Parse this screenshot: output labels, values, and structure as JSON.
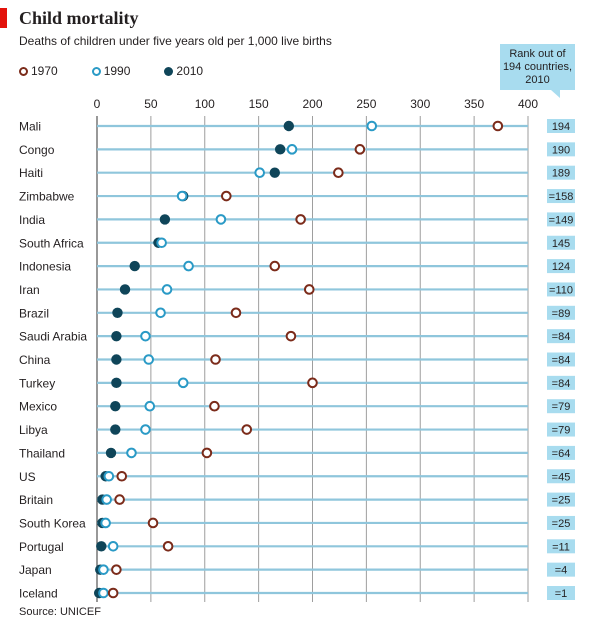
{
  "title": "Child mortality",
  "subtitle": "Deaths of children under five years old per 1,000 live births",
  "source": "Source: UNICEF",
  "rank_header": "Rank out of 194 countries, 2010",
  "colors": {
    "y1970": "#7b2b1a",
    "y1990": "#2a9ac6",
    "y2010": "#0f4559",
    "rank_bg": "#a8dcef",
    "grid": "#9e9e9e",
    "row_line": "#8fc6dc",
    "accent": "#e3120b"
  },
  "chart_data": {
    "type": "scatter",
    "title": "Child mortality",
    "subtitle": "Deaths of children under five years old per 1,000 live births",
    "xlim": [
      0,
      400
    ],
    "x_ticks": [
      0,
      50,
      100,
      150,
      200,
      250,
      300,
      350,
      400
    ],
    "legend": [
      "1970",
      "1990",
      "2010"
    ],
    "legend_position": "top-left",
    "grid": true,
    "rows": [
      {
        "country": "Mali",
        "y1970": 372,
        "y1990": 255,
        "y2010": 178,
        "rank": "194"
      },
      {
        "country": "Congo",
        "y1970": 244,
        "y1990": 181,
        "y2010": 170,
        "rank": "190"
      },
      {
        "country": "Haiti",
        "y1970": 224,
        "y1990": 151,
        "y2010": 165,
        "rank": "189"
      },
      {
        "country": "Zimbabwe",
        "y1970": 120,
        "y1990": 79,
        "y2010": 80,
        "rank": "=158"
      },
      {
        "country": "India",
        "y1970": 189,
        "y1990": 115,
        "y2010": 63,
        "rank": "=149"
      },
      {
        "country": "South Africa",
        "y1970": null,
        "y1990": 60,
        "y2010": 57,
        "rank": "145"
      },
      {
        "country": "Indonesia",
        "y1970": 165,
        "y1990": 85,
        "y2010": 35,
        "rank": "124"
      },
      {
        "country": "Iran",
        "y1970": 197,
        "y1990": 65,
        "y2010": 26,
        "rank": "=110"
      },
      {
        "country": "Brazil",
        "y1970": 129,
        "y1990": 59,
        "y2010": 19,
        "rank": "=89"
      },
      {
        "country": "Saudi Arabia",
        "y1970": 180,
        "y1990": 45,
        "y2010": 18,
        "rank": "=84"
      },
      {
        "country": "China",
        "y1970": 110,
        "y1990": 48,
        "y2010": 18,
        "rank": "=84"
      },
      {
        "country": "Turkey",
        "y1970": 200,
        "y1990": 80,
        "y2010": 18,
        "rank": "=84"
      },
      {
        "country": "Mexico",
        "y1970": 109,
        "y1990": 49,
        "y2010": 17,
        "rank": "=79"
      },
      {
        "country": "Libya",
        "y1970": 139,
        "y1990": 45,
        "y2010": 17,
        "rank": "=79"
      },
      {
        "country": "Thailand",
        "y1970": 102,
        "y1990": 32,
        "y2010": 13,
        "rank": "=64"
      },
      {
        "country": "US",
        "y1970": 23,
        "y1990": 11,
        "y2010": 8,
        "rank": "=45"
      },
      {
        "country": "Britain",
        "y1970": 21,
        "y1990": 9,
        "y2010": 5,
        "rank": "=25"
      },
      {
        "country": "South Korea",
        "y1970": 52,
        "y1990": 8,
        "y2010": 5,
        "rank": "=25"
      },
      {
        "country": "Portugal",
        "y1970": 66,
        "y1990": 15,
        "y2010": 4,
        "rank": "=11"
      },
      {
        "country": "Japan",
        "y1970": 18,
        "y1990": 6,
        "y2010": 3,
        "rank": "=4"
      },
      {
        "country": "Iceland",
        "y1970": 15,
        "y1990": 6,
        "y2010": 2,
        "rank": "=1"
      }
    ]
  }
}
